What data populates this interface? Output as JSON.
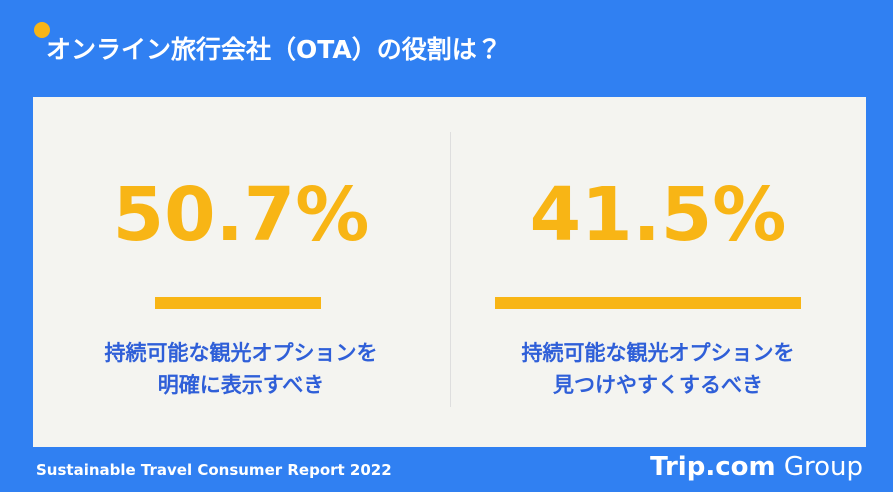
{
  "header": {
    "title": "オンライン旅行会社（OTA）の役割は？"
  },
  "stats": [
    {
      "value": "50.7%",
      "lines": [
        "持続可能な観光オプションを",
        "明確に表示すべき"
      ]
    },
    {
      "value": "41.5%",
      "lines": [
        "持続可能な観光オプションを",
        "見つけやすくするべき"
      ]
    }
  ],
  "footer": {
    "report": "Sustainable Travel Consumer Report 2022",
    "brand": "Trip.com",
    "brand_suffix": "Group"
  }
}
